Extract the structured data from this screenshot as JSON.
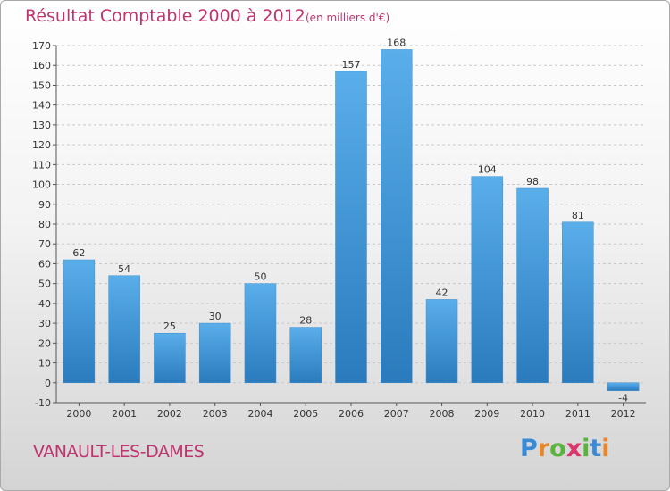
{
  "header": {
    "title": "Résultat Comptable 2000 à 2012",
    "subtitle": "(en milliers d'€)"
  },
  "footer": {
    "commune": "VANAULT-LES-DAMES",
    "logo_letters": [
      {
        "char": "P",
        "color": "#3a8ad6"
      },
      {
        "char": "r",
        "color": "#e8862a"
      },
      {
        "char": "o",
        "color": "#5ab43c"
      },
      {
        "char": "x",
        "color": "#e0336b"
      },
      {
        "char": "i",
        "color": "#5ab43c"
      },
      {
        "char": "t",
        "color": "#3a8ad6"
      },
      {
        "char": "i",
        "color": "#e8862a"
      }
    ]
  },
  "colors": {
    "bar_top": "#5aaeea",
    "bar_bottom": "#2a7bbd",
    "accent": "#c0336e",
    "grid": "#c8c8c8",
    "axis": "#555555"
  },
  "chart_data": {
    "type": "bar",
    "title": "Résultat Comptable 2000 à 2012",
    "subtitle": "(en milliers d'€)",
    "categories": [
      "2000",
      "2001",
      "2002",
      "2003",
      "2004",
      "2005",
      "2006",
      "2007",
      "2008",
      "2009",
      "2010",
      "2011",
      "2012"
    ],
    "values": [
      62,
      54,
      25,
      30,
      50,
      28,
      157,
      168,
      42,
      104,
      98,
      81,
      -4
    ],
    "ylim": [
      -10,
      170
    ],
    "yticks": [
      -10,
      0,
      10,
      20,
      30,
      40,
      50,
      60,
      70,
      80,
      90,
      100,
      110,
      120,
      130,
      140,
      150,
      160,
      170
    ],
    "grid": "horizontal dashed",
    "legend": "none"
  }
}
